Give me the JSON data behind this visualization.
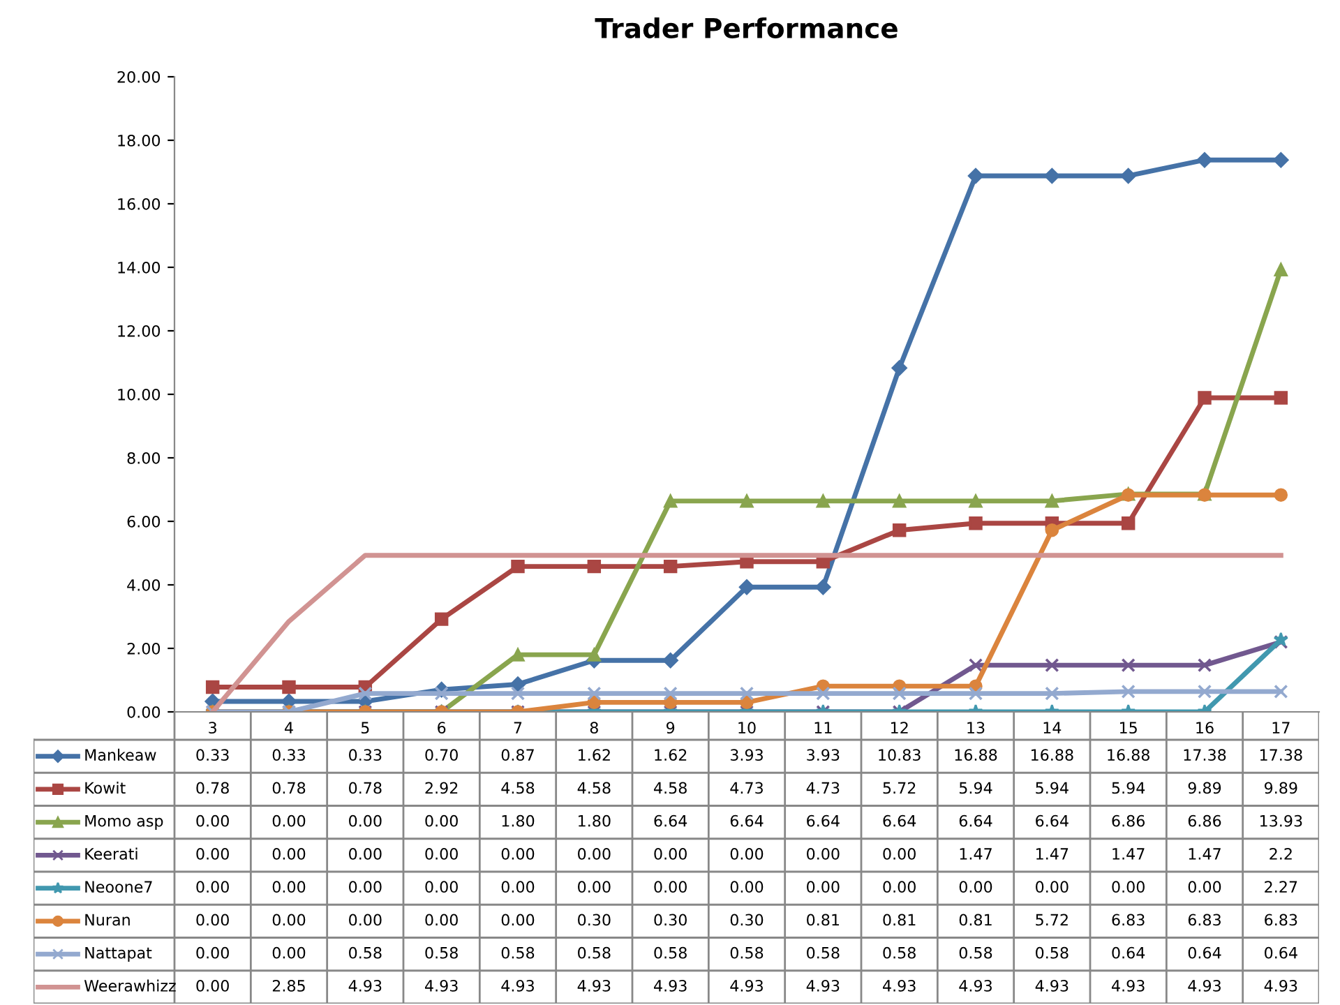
{
  "chart_data": {
    "type": "line",
    "title": "Trader Performance",
    "categories": [
      "3",
      "4",
      "5",
      "6",
      "7",
      "8",
      "9",
      "10",
      "11",
      "12",
      "13",
      "14",
      "15",
      "16",
      "17"
    ],
    "ylim": [
      0,
      20
    ],
    "yticks": [
      {
        "value": 0,
        "label": "0.00"
      },
      {
        "value": 2,
        "label": "2.00"
      },
      {
        "value": 4,
        "label": "4.00"
      },
      {
        "value": 6,
        "label": "6.00"
      },
      {
        "value": 8,
        "label": "8.00"
      },
      {
        "value": 10,
        "label": "10.00"
      },
      {
        "value": 12,
        "label": "12.00"
      },
      {
        "value": 14,
        "label": "14.00"
      },
      {
        "value": 16,
        "label": "16.00"
      },
      {
        "value": 18,
        "label": "18.00"
      },
      {
        "value": 20,
        "label": "20.00"
      }
    ],
    "grid": false,
    "legend": "bottom",
    "series": [
      {
        "name": "Mankeaw",
        "color": "#4572a7",
        "marker": "diamond",
        "values": [
          0.33,
          0.33,
          0.33,
          0.7,
          0.87,
          1.62,
          1.62,
          3.93,
          3.93,
          10.83,
          16.88,
          16.88,
          16.88,
          17.38,
          17.38
        ],
        "value_labels": [
          "0.33",
          "0.33",
          "0.33",
          "0.70",
          "0.87",
          "1.62",
          "1.62",
          "3.93",
          "3.93",
          "10.83",
          "16.88",
          "16.88",
          "16.88",
          "17.38",
          "17.38"
        ]
      },
      {
        "name": "Kowit",
        "color": "#aa4643",
        "marker": "square",
        "values": [
          0.78,
          0.78,
          0.78,
          2.92,
          4.58,
          4.58,
          4.58,
          4.73,
          4.73,
          5.72,
          5.94,
          5.94,
          5.94,
          9.89,
          9.89
        ],
        "value_labels": [
          "0.78",
          "0.78",
          "0.78",
          "2.92",
          "4.58",
          "4.58",
          "4.58",
          "4.73",
          "4.73",
          "5.72",
          "5.94",
          "5.94",
          "5.94",
          "9.89",
          "9.89"
        ]
      },
      {
        "name": "Momo asp",
        "color": "#89a54e",
        "marker": "triangle",
        "values": [
          0,
          0,
          0,
          0,
          1.8,
          1.8,
          6.64,
          6.64,
          6.64,
          6.64,
          6.64,
          6.64,
          6.86,
          6.86,
          13.93
        ],
        "value_labels": [
          "0.00",
          "0.00",
          "0.00",
          "0.00",
          "1.80",
          "1.80",
          "6.64",
          "6.64",
          "6.64",
          "6.64",
          "6.64",
          "6.64",
          "6.86",
          "6.86",
          "13.93"
        ]
      },
      {
        "name": "Keerati",
        "color": "#71588f",
        "marker": "cross",
        "values": [
          0,
          0,
          0,
          0,
          0,
          0,
          0,
          0,
          0,
          0,
          1.47,
          1.47,
          1.47,
          1.47,
          2.2
        ],
        "value_labels": [
          "0.00",
          "0.00",
          "0.00",
          "0.00",
          "0.00",
          "0.00",
          "0.00",
          "0.00",
          "0.00",
          "0.00",
          "1.47",
          "1.47",
          "1.47",
          "1.47",
          "2.2"
        ]
      },
      {
        "name": "Neoone7",
        "color": "#4198af",
        "marker": "star",
        "values": [
          0,
          0,
          0,
          0,
          0,
          0,
          0,
          0,
          0,
          0,
          0,
          0,
          0,
          0,
          2.27
        ],
        "value_labels": [
          "0.00",
          "0.00",
          "0.00",
          "0.00",
          "0.00",
          "0.00",
          "0.00",
          "0.00",
          "0.00",
          "0.00",
          "0.00",
          "0.00",
          "0.00",
          "0.00",
          "2.27"
        ]
      },
      {
        "name": "Nuran",
        "color": "#db843d",
        "marker": "circle",
        "values": [
          0,
          0,
          0,
          0,
          0,
          0.3,
          0.3,
          0.3,
          0.81,
          0.81,
          0.81,
          5.72,
          6.83,
          6.83,
          6.83
        ],
        "value_labels": [
          "0.00",
          "0.00",
          "0.00",
          "0.00",
          "0.00",
          "0.30",
          "0.30",
          "0.30",
          "0.81",
          "0.81",
          "0.81",
          "5.72",
          "6.83",
          "6.83",
          "6.83"
        ]
      },
      {
        "name": "Nattapat",
        "color": "#93a9cf",
        "marker": "cross",
        "values": [
          0,
          0,
          0.58,
          0.58,
          0.58,
          0.58,
          0.58,
          0.58,
          0.58,
          0.58,
          0.58,
          0.58,
          0.64,
          0.64,
          0.64
        ],
        "value_labels": [
          "0.00",
          "0.00",
          "0.58",
          "0.58",
          "0.58",
          "0.58",
          "0.58",
          "0.58",
          "0.58",
          "0.58",
          "0.58",
          "0.58",
          "0.64",
          "0.64",
          "0.64"
        ]
      },
      {
        "name": "Weerawhizz",
        "color": "#d19392",
        "marker": "none",
        "values": [
          0,
          2.85,
          4.93,
          4.93,
          4.93,
          4.93,
          4.93,
          4.93,
          4.93,
          4.93,
          4.93,
          4.93,
          4.93,
          4.93,
          4.93
        ],
        "value_labels": [
          "0.00",
          "2.85",
          "4.93",
          "4.93",
          "4.93",
          "4.93",
          "4.93",
          "4.93",
          "4.93",
          "4.93",
          "4.93",
          "4.93",
          "4.93",
          "4.93",
          "4.93"
        ]
      }
    ]
  }
}
